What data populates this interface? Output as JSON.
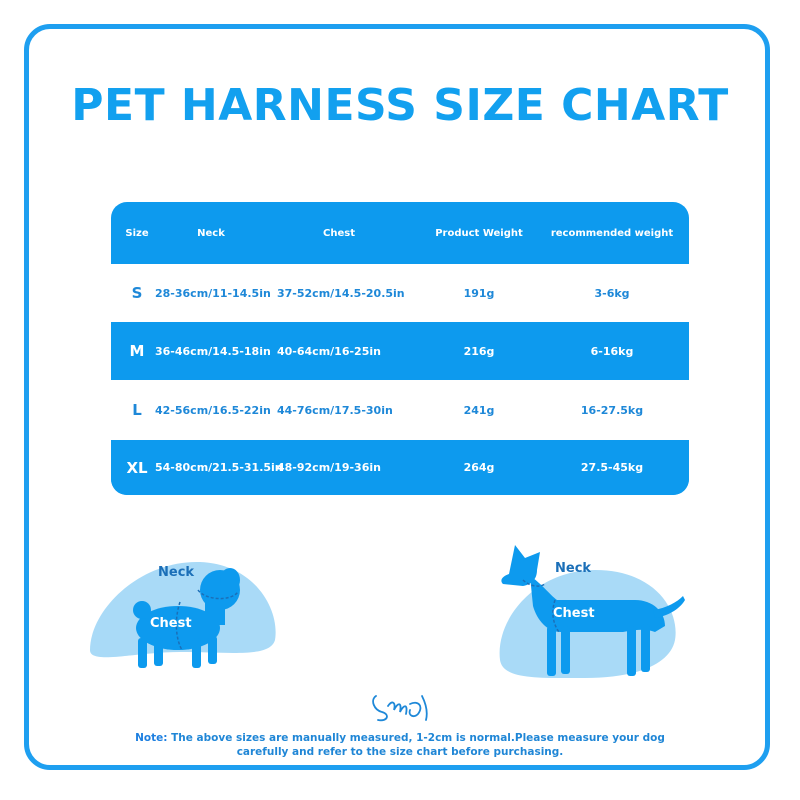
{
  "title": "PET HARNESS SIZE CHART",
  "table": {
    "headers": [
      "Size",
      "Neck",
      "Chest",
      "Product Weight",
      "recommended weight"
    ],
    "rows": [
      {
        "size": "S",
        "neck": "28-36cm/11-14.5in",
        "chest": "37-52cm/14.5-20.5in",
        "product_weight": "191g",
        "recommended_weight": "3-6kg"
      },
      {
        "size": "M",
        "neck": "36-46cm/14.5-18in",
        "chest": "40-64cm/16-25in",
        "product_weight": "216g",
        "recommended_weight": "6-16kg"
      },
      {
        "size": "L",
        "neck": "42-56cm/16.5-22in",
        "chest": "44-76cm/17.5-30in",
        "product_weight": "241g",
        "recommended_weight": "16-27.5kg"
      },
      {
        "size": "XL",
        "neck": "54-80cm/21.5-31.5in",
        "chest": "48-92cm/19-36in",
        "product_weight": "264g",
        "recommended_weight": "27.5-45kg"
      }
    ]
  },
  "diagrams": {
    "left": {
      "neck_label": "Neck",
      "chest_label": "Chest"
    },
    "right": {
      "neck_label": "Neck",
      "chest_label": "Chest"
    }
  },
  "logo_icon": "brand-signature-logo",
  "note": {
    "label": "Note:",
    "line1": "The above sizes are manually measured, 1-2cm is normal.Please measure your dog",
    "line2": "carefully and refer to the size chart before purchasing."
  },
  "colors": {
    "accent": "#0d9aee",
    "title": "#12a0ef",
    "text_blue": "#1e88d8",
    "blob": "#a9daf7"
  }
}
